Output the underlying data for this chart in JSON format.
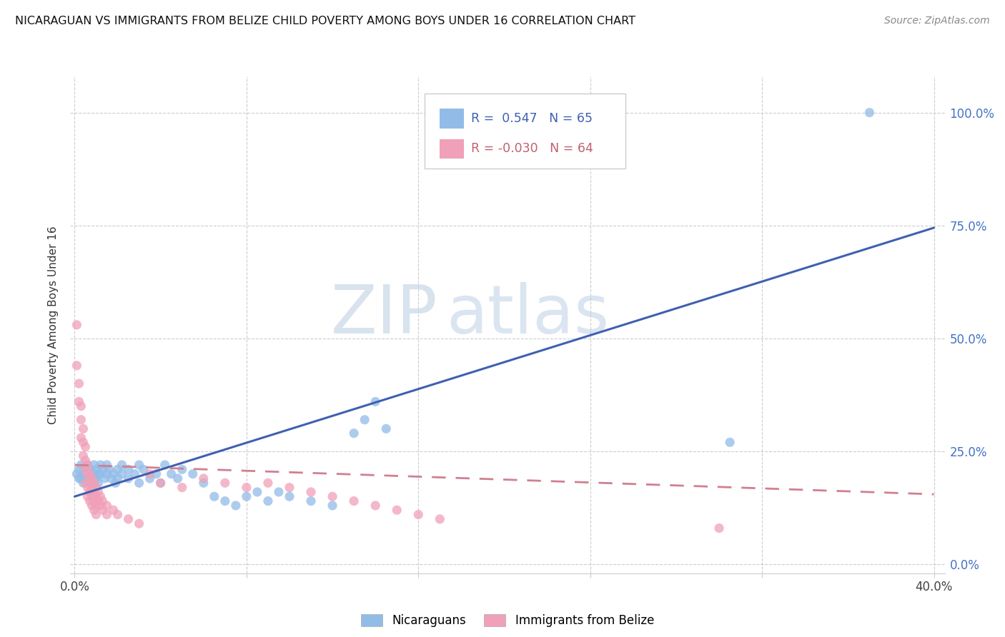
{
  "title": "NICARAGUAN VS IMMIGRANTS FROM BELIZE CHILD POVERTY AMONG BOYS UNDER 16 CORRELATION CHART",
  "source": "Source: ZipAtlas.com",
  "ylabel": "Child Poverty Among Boys Under 16",
  "yticks_labels": [
    "0.0%",
    "25.0%",
    "50.0%",
    "75.0%",
    "100.0%"
  ],
  "ytick_vals": [
    0.0,
    0.25,
    0.5,
    0.75,
    1.0
  ],
  "xtick_vals": [
    0.0,
    0.08,
    0.16,
    0.24,
    0.32,
    0.4
  ],
  "xtick_labels": [
    "0.0%",
    "",
    "",
    "",
    "",
    "40.0%"
  ],
  "xlim": [
    -0.002,
    0.405
  ],
  "ylim": [
    -0.02,
    1.08
  ],
  "color_nicaraguan": "#92bce8",
  "color_belize": "#f0a0b8",
  "color_line_nicaraguan": "#4060b0",
  "color_line_belize": "#d08090",
  "watermark_zip": "ZIP",
  "watermark_atlas": "atlas",
  "nic_line_x": [
    0.0,
    0.4
  ],
  "nic_line_y": [
    0.15,
    0.745
  ],
  "bel_line_x": [
    0.0,
    0.4
  ],
  "bel_line_y": [
    0.22,
    0.155
  ],
  "nicaraguan_points": [
    [
      0.001,
      0.2
    ],
    [
      0.002,
      0.19
    ],
    [
      0.002,
      0.21
    ],
    [
      0.003,
      0.22
    ],
    [
      0.003,
      0.19
    ],
    [
      0.004,
      0.2
    ],
    [
      0.004,
      0.18
    ],
    [
      0.005,
      0.21
    ],
    [
      0.005,
      0.19
    ],
    [
      0.006,
      0.22
    ],
    [
      0.006,
      0.2
    ],
    [
      0.007,
      0.19
    ],
    [
      0.007,
      0.21
    ],
    [
      0.008,
      0.2
    ],
    [
      0.008,
      0.18
    ],
    [
      0.009,
      0.22
    ],
    [
      0.009,
      0.2
    ],
    [
      0.01,
      0.19
    ],
    [
      0.01,
      0.21
    ],
    [
      0.011,
      0.2
    ],
    [
      0.011,
      0.18
    ],
    [
      0.012,
      0.22
    ],
    [
      0.012,
      0.2
    ],
    [
      0.013,
      0.21
    ],
    [
      0.014,
      0.19
    ],
    [
      0.015,
      0.22
    ],
    [
      0.015,
      0.2
    ],
    [
      0.016,
      0.21
    ],
    [
      0.017,
      0.19
    ],
    [
      0.018,
      0.2
    ],
    [
      0.019,
      0.18
    ],
    [
      0.02,
      0.21
    ],
    [
      0.02,
      0.19
    ],
    [
      0.022,
      0.22
    ],
    [
      0.022,
      0.2
    ],
    [
      0.025,
      0.21
    ],
    [
      0.025,
      0.19
    ],
    [
      0.028,
      0.2
    ],
    [
      0.03,
      0.22
    ],
    [
      0.03,
      0.18
    ],
    [
      0.032,
      0.21
    ],
    [
      0.035,
      0.19
    ],
    [
      0.038,
      0.2
    ],
    [
      0.04,
      0.18
    ],
    [
      0.042,
      0.22
    ],
    [
      0.045,
      0.2
    ],
    [
      0.048,
      0.19
    ],
    [
      0.05,
      0.21
    ],
    [
      0.055,
      0.2
    ],
    [
      0.06,
      0.18
    ],
    [
      0.065,
      0.15
    ],
    [
      0.07,
      0.14
    ],
    [
      0.075,
      0.13
    ],
    [
      0.08,
      0.15
    ],
    [
      0.085,
      0.16
    ],
    [
      0.09,
      0.14
    ],
    [
      0.095,
      0.16
    ],
    [
      0.1,
      0.15
    ],
    [
      0.11,
      0.14
    ],
    [
      0.12,
      0.13
    ],
    [
      0.13,
      0.29
    ],
    [
      0.135,
      0.32
    ],
    [
      0.14,
      0.36
    ],
    [
      0.145,
      0.3
    ],
    [
      0.305,
      0.27
    ],
    [
      0.37,
      1.0
    ]
  ],
  "belize_points": [
    [
      0.001,
      0.53
    ],
    [
      0.001,
      0.44
    ],
    [
      0.002,
      0.4
    ],
    [
      0.002,
      0.36
    ],
    [
      0.003,
      0.35
    ],
    [
      0.003,
      0.32
    ],
    [
      0.003,
      0.28
    ],
    [
      0.004,
      0.3
    ],
    [
      0.004,
      0.27
    ],
    [
      0.004,
      0.24
    ],
    [
      0.005,
      0.26
    ],
    [
      0.005,
      0.23
    ],
    [
      0.005,
      0.21
    ],
    [
      0.005,
      0.18
    ],
    [
      0.006,
      0.22
    ],
    [
      0.006,
      0.2
    ],
    [
      0.006,
      0.17
    ],
    [
      0.006,
      0.15
    ],
    [
      0.007,
      0.2
    ],
    [
      0.007,
      0.18
    ],
    [
      0.007,
      0.16
    ],
    [
      0.007,
      0.14
    ],
    [
      0.008,
      0.19
    ],
    [
      0.008,
      0.17
    ],
    [
      0.008,
      0.15
    ],
    [
      0.008,
      0.13
    ],
    [
      0.009,
      0.18
    ],
    [
      0.009,
      0.16
    ],
    [
      0.009,
      0.14
    ],
    [
      0.009,
      0.12
    ],
    [
      0.01,
      0.17
    ],
    [
      0.01,
      0.15
    ],
    [
      0.01,
      0.13
    ],
    [
      0.01,
      0.11
    ],
    [
      0.011,
      0.16
    ],
    [
      0.011,
      0.14
    ],
    [
      0.012,
      0.15
    ],
    [
      0.012,
      0.13
    ],
    [
      0.013,
      0.14
    ],
    [
      0.013,
      0.12
    ],
    [
      0.015,
      0.13
    ],
    [
      0.015,
      0.11
    ],
    [
      0.018,
      0.12
    ],
    [
      0.02,
      0.11
    ],
    [
      0.025,
      0.1
    ],
    [
      0.03,
      0.09
    ],
    [
      0.035,
      0.2
    ],
    [
      0.04,
      0.18
    ],
    [
      0.05,
      0.17
    ],
    [
      0.06,
      0.19
    ],
    [
      0.07,
      0.18
    ],
    [
      0.08,
      0.17
    ],
    [
      0.09,
      0.18
    ],
    [
      0.1,
      0.17
    ],
    [
      0.11,
      0.16
    ],
    [
      0.12,
      0.15
    ],
    [
      0.13,
      0.14
    ],
    [
      0.14,
      0.13
    ],
    [
      0.15,
      0.12
    ],
    [
      0.16,
      0.11
    ],
    [
      0.17,
      0.1
    ],
    [
      0.3,
      0.08
    ]
  ]
}
